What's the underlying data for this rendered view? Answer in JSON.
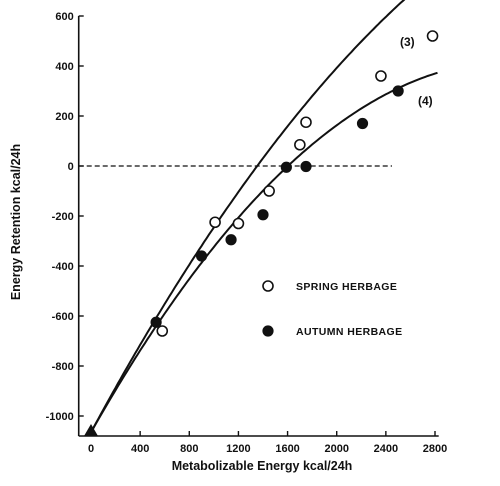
{
  "chart_data": {
    "type": "scatter",
    "title": "",
    "xlabel": "Metabolizable Energy kcal/24h",
    "ylabel": "Energy Retention kcal/24h",
    "xlim": [
      -100,
      2830
    ],
    "ylim": [
      -1080,
      600
    ],
    "x_ticks": [
      0,
      400,
      800,
      1200,
      1600,
      2000,
      2400,
      2800
    ],
    "x_tick_labels": [
      "0",
      "400",
      "800",
      "1200",
      "1600",
      "2000",
      "2400",
      "2800"
    ],
    "y_ticks": [
      600,
      400,
      200,
      0,
      -200,
      -400,
      -600,
      -800,
      -1000
    ],
    "y_tick_labels": [
      "600",
      "400",
      "200",
      "0",
      "-200",
      "-400",
      "-600",
      "-800",
      "-1000"
    ],
    "zero_line": "dashed",
    "grid": false,
    "legend_position": "center-right",
    "series": [
      {
        "name": "SPRING HERBAGE",
        "marker": "open-circle",
        "points": [
          {
            "x": 580,
            "y": -660
          },
          {
            "x": 1010,
            "y": -225
          },
          {
            "x": 1200,
            "y": -230
          },
          {
            "x": 1450,
            "y": -100
          },
          {
            "x": 1700,
            "y": 85
          },
          {
            "x": 1750,
            "y": 175
          },
          {
            "x": 2360,
            "y": 360
          },
          {
            "x": 2780,
            "y": 520
          }
        ]
      },
      {
        "name": "AUTUMN HERBAGE",
        "marker": "filled-circle",
        "points": [
          {
            "x": 530,
            "y": -625
          },
          {
            "x": 900,
            "y": -360
          },
          {
            "x": 1140,
            "y": -295
          },
          {
            "x": 1400,
            "y": -195
          },
          {
            "x": 1590,
            "y": -5
          },
          {
            "x": 1750,
            "y": -2
          },
          {
            "x": 2210,
            "y": 170
          },
          {
            "x": 2500,
            "y": 300
          }
        ]
      }
    ],
    "intercept_point": {
      "x": 0,
      "y": -1060,
      "marker": "filled-triangle"
    },
    "curves": [
      {
        "label": "(3)",
        "x_range": [
          0,
          2800
        ],
        "coef": [
          -1065,
          0.91,
          -9.07e-05
        ]
      },
      {
        "label": "(4)",
        "x_range": [
          0,
          2830
        ],
        "coef": [
          -1065,
          0.868,
          -0.000127
        ]
      }
    ]
  }
}
